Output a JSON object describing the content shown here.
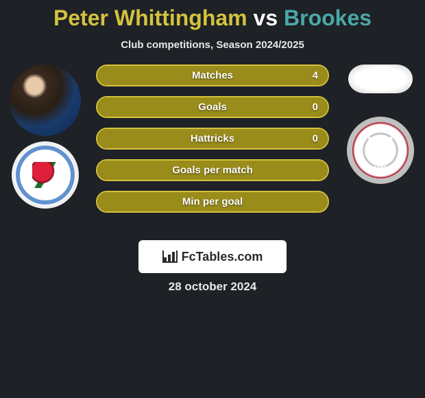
{
  "title": {
    "player1": "Peter Whittingham",
    "vs": " vs ",
    "player2": "Brookes",
    "player1_color": "#d4c23e",
    "vs_color": "#ffffff",
    "player2_color": "#4aa8a8"
  },
  "subtitle": "Club competitions, Season 2024/2025",
  "stats": [
    {
      "label": "Matches",
      "value": "4",
      "bar_color": "#9a8c1a",
      "border_color": "#d4c23e",
      "fill_pct": 100
    },
    {
      "label": "Goals",
      "value": "0",
      "bar_color": "#9a8c1a",
      "border_color": "#d4c23e",
      "fill_pct": 100
    },
    {
      "label": "Hattricks",
      "value": "0",
      "bar_color": "#9a8c1a",
      "border_color": "#d4c23e",
      "fill_pct": 100
    },
    {
      "label": "Goals per match",
      "value": "",
      "bar_color": "#9a8c1a",
      "border_color": "#d4c23e",
      "fill_pct": 100
    },
    {
      "label": "Min per goal",
      "value": "",
      "bar_color": "#9a8c1a",
      "border_color": "#d4c23e",
      "fill_pct": 100
    }
  ],
  "footer": {
    "brand": "FcTables.com",
    "date": "28 october 2024"
  },
  "colors": {
    "background": "#1e2126",
    "text_light": "#e8e8e8"
  }
}
